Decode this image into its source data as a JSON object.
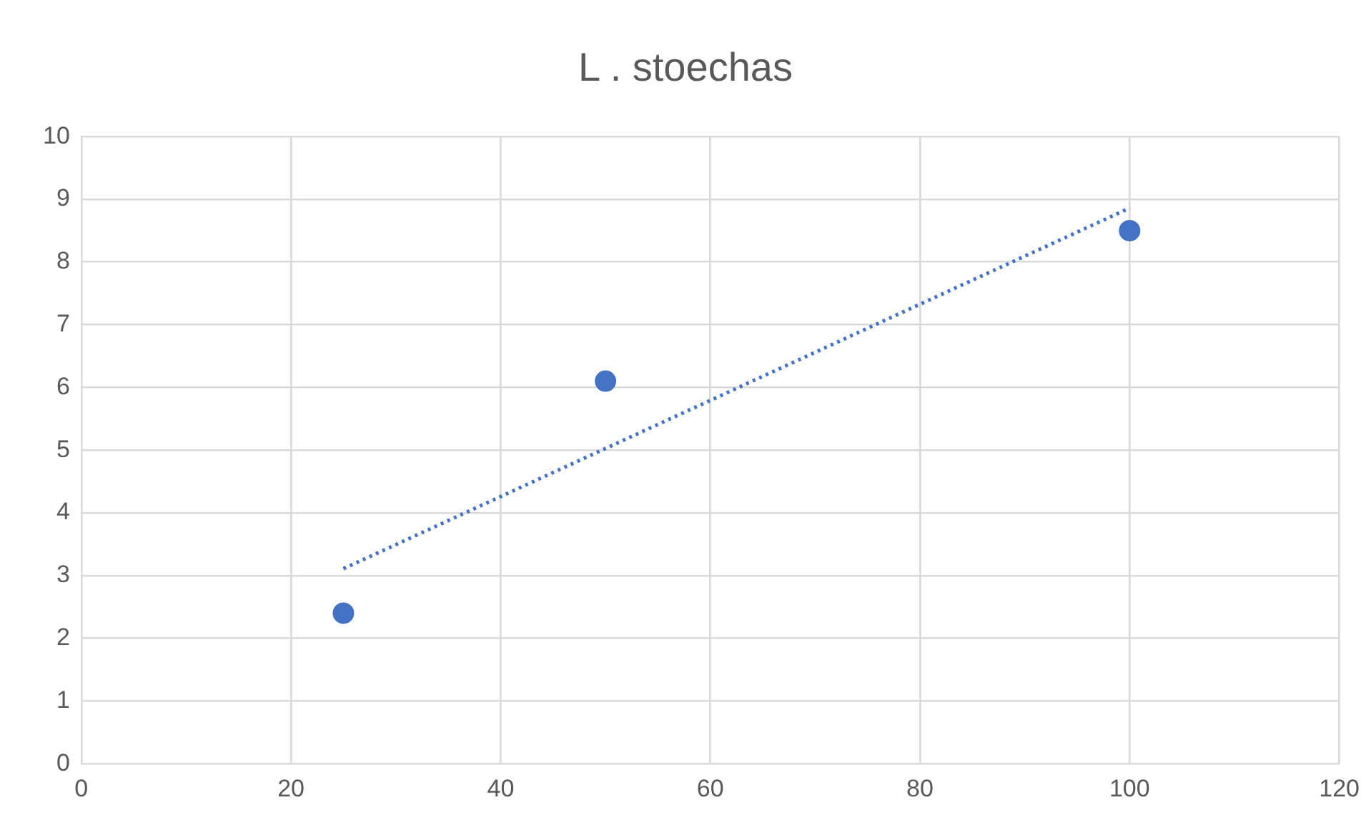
{
  "chart_data": {
    "type": "scatter",
    "title": "L . stoechas",
    "xlim": [
      0,
      120
    ],
    "xticks": [
      0,
      20,
      40,
      60,
      80,
      100,
      120
    ],
    "ylim": [
      0,
      10
    ],
    "yticks": [
      0,
      1,
      2,
      3,
      4,
      5,
      6,
      7,
      8,
      9,
      10
    ],
    "grid": true,
    "legend": false,
    "marker": "circle",
    "series": [
      {
        "type": "scatter",
        "color": "#4472c4",
        "x": [
          25,
          50,
          100
        ],
        "values": [
          2.4,
          6.1,
          8.5
        ]
      },
      {
        "type": "line",
        "color": "#4472c4",
        "x": [
          25,
          100
        ],
        "values": [
          3.11,
          8.86
        ],
        "line_style": "dotted",
        "marker": "none"
      }
    ]
  }
}
